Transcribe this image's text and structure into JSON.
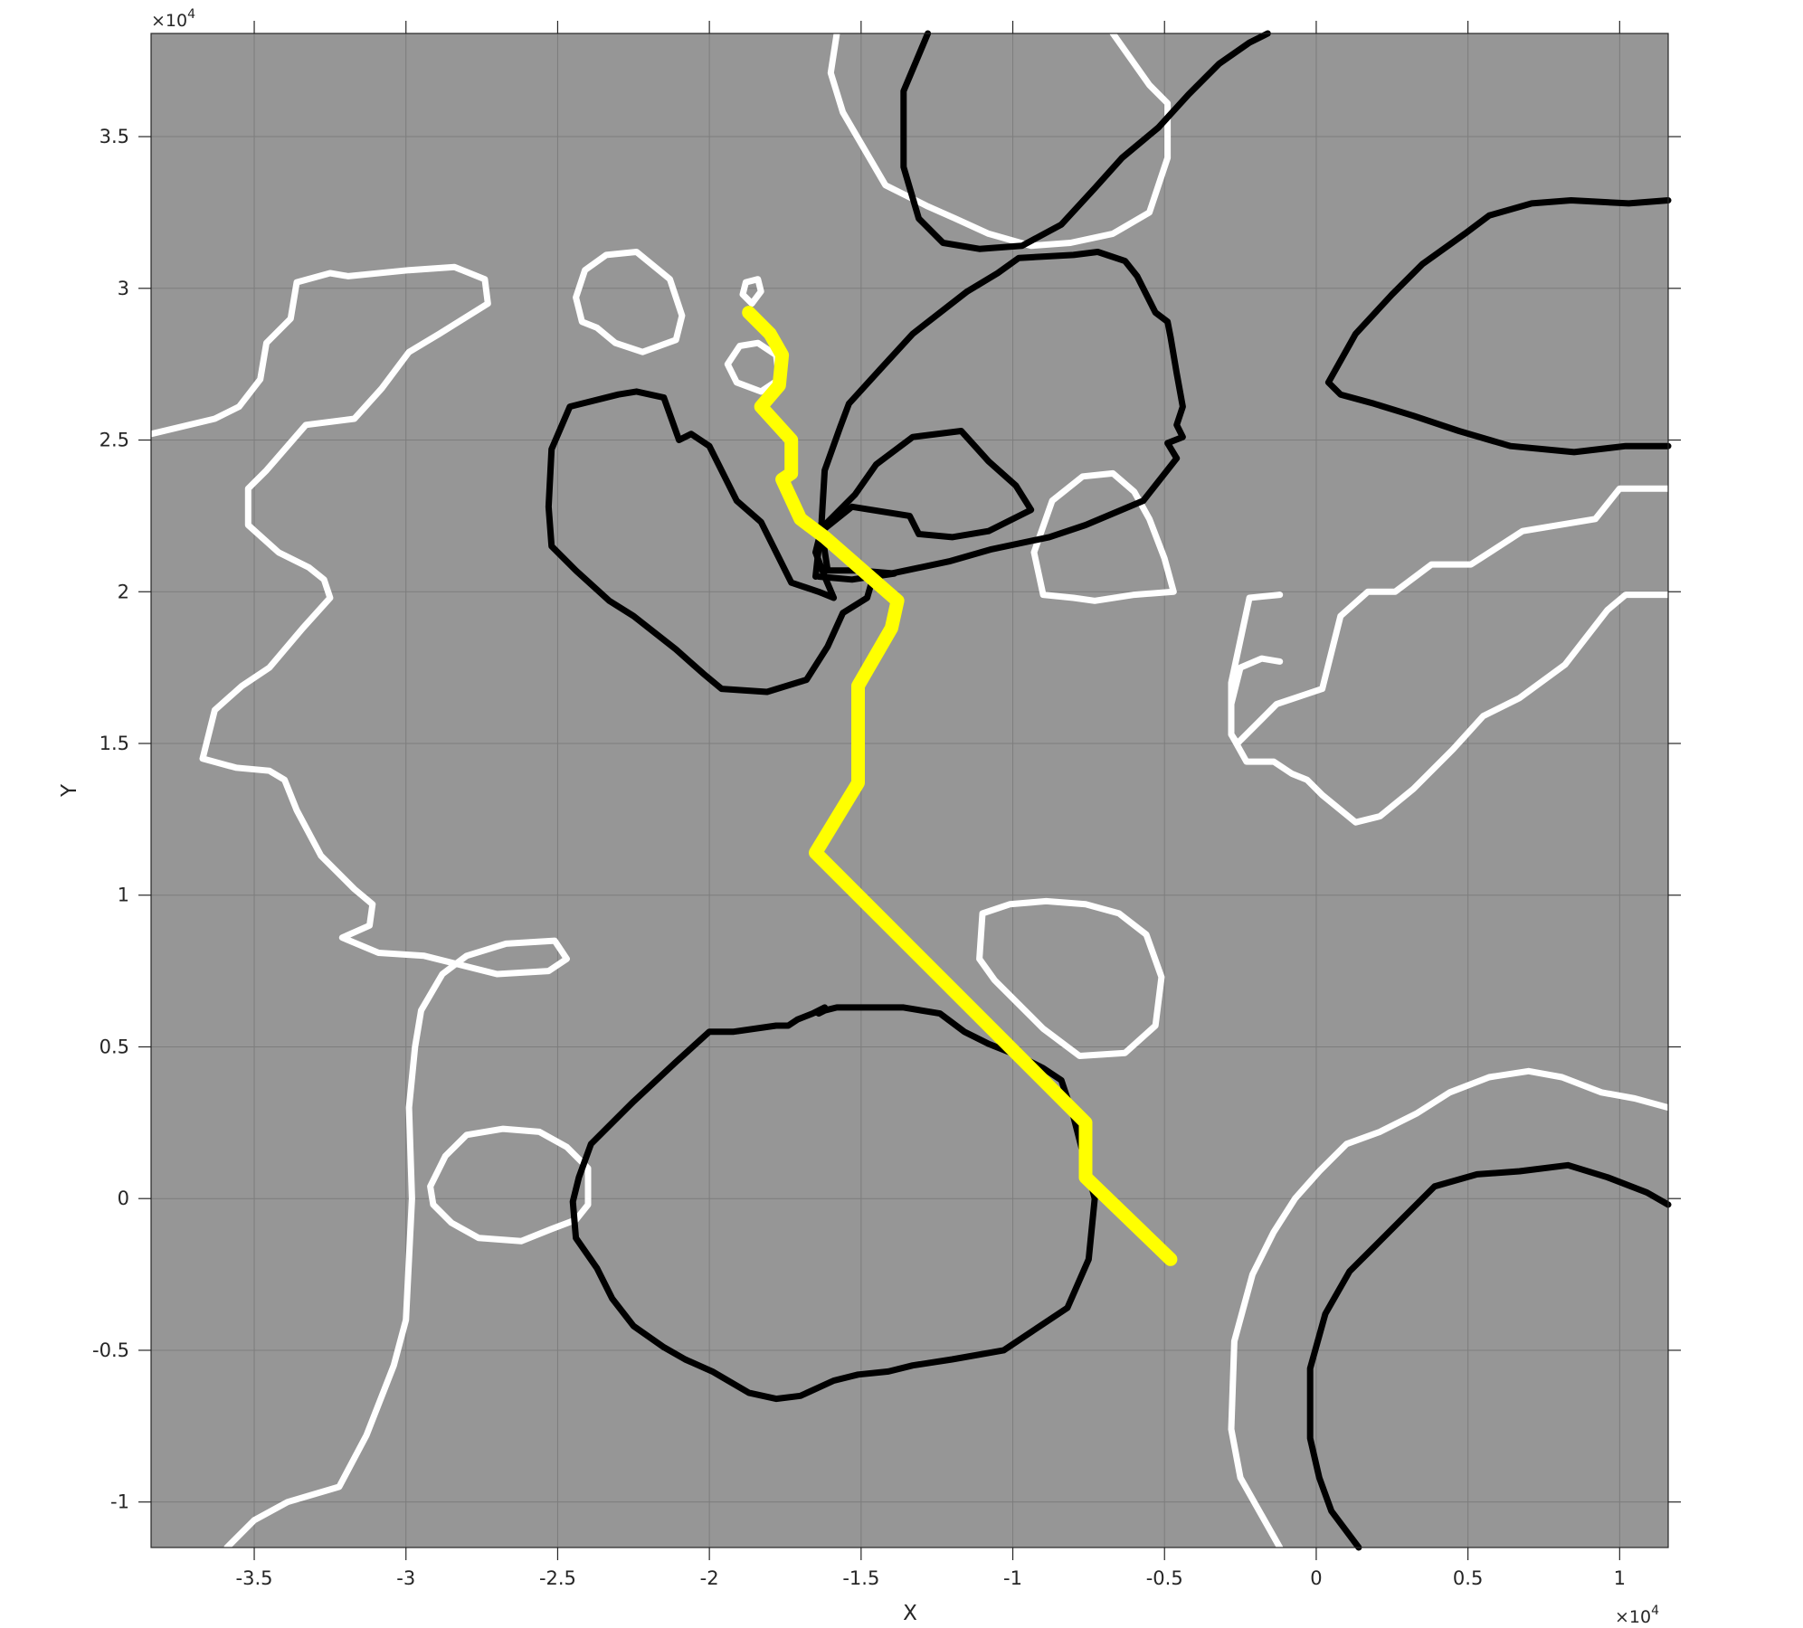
{
  "chart_data": {
    "type": "line",
    "title": "",
    "xlabel": "X",
    "ylabel": "Y",
    "xlim": [
      -38400,
      11600
    ],
    "ylim": [
      -11500,
      38400
    ],
    "grid": true,
    "background_color": "#969696",
    "x_exponent_label": "×10",
    "x_exponent_power": "4",
    "y_exponent_label": "×10",
    "y_exponent_power": "4",
    "x_ticks": [
      -35000,
      -30000,
      -25000,
      -20000,
      -15000,
      -10000,
      -5000,
      0,
      5000,
      10000
    ],
    "x_tick_labels": [
      "-3.5",
      "-3",
      "-2.5",
      "-2",
      "-1.5",
      "-1",
      "-0.5",
      "0",
      "0.5",
      "1"
    ],
    "y_ticks": [
      -10000,
      -5000,
      0,
      5000,
      10000,
      15000,
      20000,
      25000,
      30000,
      35000
    ],
    "y_tick_labels": [
      "-1",
      "-0.5",
      "0",
      "0.5",
      "1",
      "1.5",
      "2",
      "2.5",
      "3",
      "3.5"
    ],
    "path": {
      "color": "#ffff00",
      "x": [
        -18700,
        -18000,
        -17600,
        -17700,
        -18300,
        -17300,
        -17300,
        -17600,
        -17000,
        -16200,
        -13800,
        -14000,
        -15100,
        -15100,
        -16500,
        -7600,
        -7600,
        -7600,
        -4800
      ],
      "y": [
        29200,
        28500,
        27800,
        26800,
        26100,
        25000,
        23900,
        23700,
        22400,
        21800,
        19700,
        18800,
        16900,
        13700,
        11400,
        2500,
        1300,
        700,
        -2000
      ]
    },
    "contours": [
      {
        "color": "#ffffff",
        "x": [
          -38400,
          -36300,
          -35500,
          -34800,
          -34600,
          -33800,
          -33600,
          -32500,
          -31900,
          -29900,
          -28400,
          -27400,
          -27300,
          -28900,
          -29900,
          -30800,
          -31700,
          -33300,
          -34600,
          -35200,
          -35200,
          -34200,
          -33200,
          -32700,
          -32500,
          -33400,
          -34500,
          -35400,
          -36300,
          -36700,
          -35600,
          -34500,
          -34000,
          -33600,
          -32800,
          -31700,
          -31100,
          -31200,
          -32100,
          -30900,
          -29400,
          -28200,
          -27000,
          -25300,
          -24700,
          -25100,
          -26700,
          -28000,
          -28800,
          -29500,
          -29700,
          -29900,
          -29800,
          -30000,
          -30400,
          -31300,
          -32200,
          -33900,
          -35000,
          -35900
        ],
        "y": [
          25200,
          25700,
          26100,
          27000,
          28200,
          29000,
          30200,
          30500,
          30400,
          30600,
          30700,
          30300,
          29500,
          28500,
          27900,
          26700,
          25700,
          25500,
          24000,
          23400,
          22200,
          21300,
          20800,
          20400,
          19800,
          18800,
          17500,
          16900,
          16100,
          14500,
          14200,
          14100,
          13800,
          12800,
          11300,
          10200,
          9700,
          9000,
          8600,
          8100,
          8000,
          7700,
          7400,
          7500,
          7900,
          8500,
          8400,
          8000,
          7400,
          6200,
          5000,
          3000,
          0,
          -4000,
          -5500,
          -7800,
          -9500,
          -10000,
          -10600,
          -11500
        ]
      },
      {
        "color": "#ffffff",
        "x": [
          -24000,
          -24400,
          -25200,
          -26200,
          -27600,
          -28500,
          -29100,
          -29200,
          -28700,
          -28000,
          -26800,
          -25600,
          -24700,
          -24000,
          -24000
        ],
        "y": [
          -200,
          -700,
          -1000,
          -1400,
          -1300,
          -800,
          -200,
          400,
          1400,
          2100,
          2300,
          2200,
          1700,
          1000,
          -200
        ]
      },
      {
        "color": "#ffffff",
        "x": [
          -23700,
          -23100,
          -22200,
          -21100,
          -20900,
          -21300,
          -22400,
          -23400,
          -24100,
          -24400,
          -24200,
          -23700
        ],
        "y": [
          28700,
          28200,
          27900,
          28300,
          29100,
          30300,
          31200,
          31100,
          30600,
          29700,
          28900,
          28700
        ]
      },
      {
        "color": "#ffffff",
        "x": [
          -18600,
          -18300,
          -18400,
          -18800,
          -18900,
          -18600
        ],
        "y": [
          29500,
          29900,
          30300,
          30200,
          29800,
          29500
        ]
      },
      {
        "color": "#ffffff",
        "x": [
          -18300,
          -17700,
          -17800,
          -18400,
          -19000,
          -19400,
          -19100,
          -18300
        ],
        "y": [
          26600,
          27000,
          27800,
          28200,
          28100,
          27500,
          26900,
          26600
        ]
      },
      {
        "color": "#ffffff",
        "x": [
          -15800,
          -16000,
          -15600,
          -14200,
          -12800,
          -11900,
          -10800,
          -9400,
          -8100,
          -6700,
          -5500,
          -4900,
          -4900,
          -5500,
          -6700
        ],
        "y": [
          38400,
          37100,
          35800,
          33400,
          32700,
          32300,
          31800,
          31400,
          31500,
          31800,
          32500,
          34300,
          36100,
          36700,
          38400
        ]
      },
      {
        "color": "#ffffff",
        "x": [
          -8000,
          -9000,
          -9300,
          -8700,
          -7700,
          -6700,
          -6000,
          -5500,
          -5000,
          -4700,
          -6000,
          -7300,
          -8000
        ],
        "y": [
          19800,
          19900,
          21300,
          23000,
          23800,
          23900,
          23300,
          22400,
          21100,
          20000,
          19900,
          19700,
          19800
        ]
      },
      {
        "color": "#ffffff",
        "x": [
          -10600,
          -11100,
          -11000,
          -10100,
          -8900,
          -7600,
          -6500,
          -5600,
          -5100,
          -5300,
          -6300,
          -7800,
          -9000,
          -10600
        ],
        "y": [
          7200,
          7900,
          9400,
          9700,
          9800,
          9700,
          9400,
          8700,
          7300,
          5700,
          4800,
          4700,
          5600,
          7200
        ]
      },
      {
        "color": "#ffffff",
        "x": [
          11600,
          10000,
          9200,
          6800,
          5100,
          3800,
          2600,
          1700,
          800,
          200,
          -1300,
          -2000,
          -2600,
          -2800,
          -2800,
          -2500,
          -1800,
          -1200
        ],
        "y": [
          23400,
          23400,
          22400,
          22000,
          20900,
          20900,
          20000,
          20000,
          19200,
          16800,
          16300,
          15600,
          15000,
          15300,
          16300,
          17500,
          17800,
          17700
        ]
      },
      {
        "color": "#ffffff",
        "x": [
          11600,
          10200,
          9600,
          8200,
          6700,
          5500,
          4500,
          3200,
          2100,
          1300,
          200,
          -300,
          -800,
          -1400,
          -2300,
          -2800,
          -2800,
          -2200,
          -1200
        ],
        "y": [
          19900,
          19900,
          19400,
          17600,
          16500,
          15900,
          14800,
          13500,
          12600,
          12400,
          13300,
          13800,
          14000,
          14400,
          14400,
          15300,
          17000,
          19800,
          19900
        ]
      },
      {
        "color": "#ffffff",
        "x": [
          11600,
          10500,
          9400,
          8100,
          7000,
          5700,
          4400,
          3300,
          2100,
          1000,
          100,
          -700,
          -1400,
          -2100,
          -2700,
          -2800,
          -2500,
          -1200
        ],
        "y": [
          3000,
          3300,
          3500,
          4000,
          4200,
          4000,
          3500,
          2800,
          2200,
          1800,
          900,
          0,
          -1100,
          -2500,
          -4700,
          -7600,
          -9200,
          -11500
        ]
      },
      {
        "color": "#000000",
        "x": [
          -19900,
          -18700,
          -17800,
          -17000,
          -15900,
          -15100,
          -14100,
          -13300,
          -12000,
          -10300,
          -8200,
          -7500,
          -7300,
          -8000,
          -8400,
          -9000,
          -9800,
          -10800,
          -11600,
          -12400,
          -13600,
          -14800,
          -15800,
          -16200,
          -16400,
          -16200,
          -16600,
          -17100,
          -17400,
          -17800,
          -19200,
          -20000,
          -21100,
          -22500,
          -23900,
          -24300,
          -24500,
          -24400,
          -23700,
          -23200,
          -22500,
          -21500,
          -20800,
          -19900,
          -19900
        ],
        "y": [
          -5700,
          -6400,
          -6600,
          -6500,
          -6000,
          -5800,
          -5700,
          -5500,
          -5300,
          -5000,
          -3600,
          -2000,
          0,
          2700,
          3900,
          4300,
          4700,
          5100,
          5500,
          6100,
          6300,
          6300,
          6300,
          6200,
          6100,
          6300,
          6100,
          5900,
          5700,
          5700,
          5500,
          5500,
          4500,
          3200,
          1800,
          700,
          -100,
          -1300,
          -2300,
          -3300,
          -4200,
          -4900,
          -5300,
          -5700,
          -5700
        ]
      },
      {
        "color": "#000000",
        "x": [
          -25200,
          -25300,
          -25200,
          -24400,
          -23300,
          -22500,
          -21100,
          -20200,
          -19600,
          -18100,
          -16800,
          -16100,
          -15600,
          -14800,
          -14600,
          -13900,
          -15100,
          -16100,
          -16300,
          -15300,
          -13400,
          -13100,
          -12000,
          -10800,
          -9400,
          -9900,
          -10800,
          -11700,
          -13300,
          -14500,
          -15200,
          -16300,
          -16500,
          -16200,
          -15900,
          -16400,
          -17300,
          -18300,
          -19100,
          -20000,
          -20600,
          -21000,
          -21500,
          -22400,
          -23000,
          -24600,
          -25200
        ],
        "y": [
          24700,
          22800,
          21500,
          20700,
          19700,
          19200,
          18100,
          17300,
          16800,
          16700,
          17100,
          18200,
          19300,
          19800,
          20500,
          20600,
          20700,
          20700,
          22000,
          22800,
          22500,
          21900,
          21800,
          22000,
          22700,
          23500,
          24300,
          25300,
          25100,
          24200,
          23200,
          22100,
          21300,
          20500,
          19800,
          20000,
          20300,
          22300,
          23000,
          24800,
          25200,
          25000,
          26400,
          26600,
          26500,
          26100,
          24700
        ]
      },
      {
        "color": "#000000",
        "x": [
          -16500,
          -16300,
          -16200,
          -15700,
          -15400,
          -14400,
          -13300,
          -11500,
          -10500,
          -9800,
          -8000,
          -7200,
          -6300,
          -5900,
          -5600,
          -5300,
          -4900,
          -4800,
          -4600,
          -4400,
          -4600,
          -4400,
          -4900,
          -4600,
          -5700,
          -7600,
          -8800,
          -10700,
          -12100,
          -14000,
          -15300,
          -16400
        ],
        "y": [
          20500,
          22300,
          24000,
          25400,
          26200,
          27300,
          28500,
          29900,
          30500,
          31000,
          31100,
          31200,
          30900,
          30400,
          29800,
          29200,
          28900,
          28400,
          27200,
          26100,
          25500,
          25100,
          24900,
          24400,
          23000,
          22200,
          21800,
          21400,
          21000,
          20600,
          20400,
          20500
        ]
      },
      {
        "color": "#000000",
        "x": [
          -12800,
          -13600,
          -13600,
          -13100,
          -12300,
          -11100,
          -9700,
          -8400,
          -7300,
          -6400,
          -5200,
          -4200,
          -3200,
          -2200,
          -1600
        ],
        "y": [
          38400,
          36500,
          34000,
          32300,
          31500,
          31300,
          31400,
          32100,
          33300,
          34300,
          35300,
          36400,
          37400,
          38100,
          38400
        ]
      },
      {
        "color": "#000000",
        "x": [
          11600,
          10200,
          8500,
          6400,
          4700,
          3200,
          1900,
          800,
          400,
          1300,
          2500,
          3500,
          4900,
          5700,
          7100,
          8400,
          10300,
          11600
        ],
        "y": [
          24800,
          24800,
          24600,
          24800,
          25300,
          25800,
          26200,
          26500,
          26900,
          28500,
          29800,
          30800,
          31800,
          32400,
          32800,
          32900,
          32800,
          32900
        ]
      },
      {
        "color": "#000000",
        "x": [
          11600,
          10900,
          9600,
          8300,
          6700,
          5300,
          3900,
          2800,
          1900,
          1100,
          300,
          -200,
          -200,
          100,
          500,
          1400
        ],
        "y": [
          -200,
          200,
          700,
          1100,
          900,
          800,
          400,
          -700,
          -1600,
          -2400,
          -3800,
          -5600,
          -7900,
          -9200,
          -10300,
          -11500
        ]
      }
    ]
  }
}
